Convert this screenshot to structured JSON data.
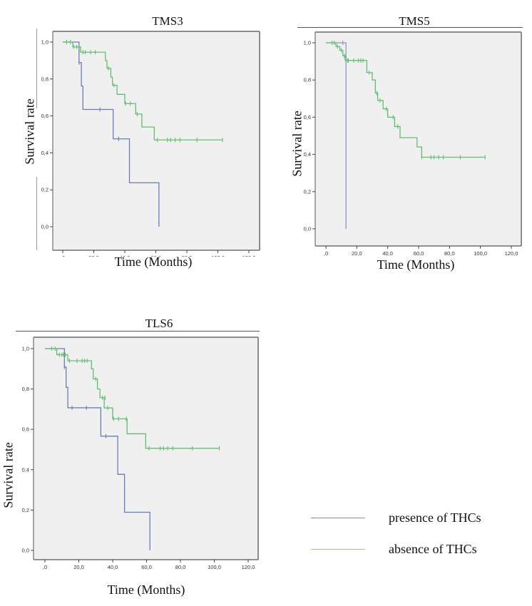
{
  "legend": {
    "items": [
      {
        "label": "presence of THCs",
        "color": "#7f86b8"
      },
      {
        "label": "absence of THCs",
        "color": "#8fcf9a"
      }
    ]
  },
  "chart_data": [
    {
      "id": "tms3",
      "type": "line",
      "subtype": "kaplan-meier-step",
      "title": "TMS3",
      "xlabel": "Time (Months)",
      "ylabel": "Survival rate",
      "xlim": [
        0,
        120
      ],
      "ylim": [
        0,
        1
      ],
      "xticks": [
        0,
        20,
        40,
        60,
        80,
        100,
        120
      ],
      "xtick_labels": [
        ",0",
        "20,0",
        "40,0",
        "60,0",
        "80,0",
        "100,0",
        "120,0"
      ],
      "yticks": [
        0,
        0.2,
        0.4,
        0.6,
        0.8,
        1.0
      ],
      "ytick_labels": [
        "0,0",
        "0,2",
        "0,4",
        "0,6",
        "0,8",
        "1,0"
      ],
      "grid": false,
      "series": [
        {
          "name": "presence of THCs",
          "color": "#6f7ab8",
          "steps": [
            [
              0,
              1.0
            ],
            [
              10.5,
              0.889
            ],
            [
              12,
              0.762
            ],
            [
              13,
              0.635
            ],
            [
              32.5,
              0.476
            ],
            [
              43,
              0.238
            ],
            [
              62,
              0.0
            ]
          ],
          "end": 62,
          "censors": [
            [
              10.5,
              0.889
            ],
            [
              24,
              0.635
            ],
            [
              36,
              0.476
            ]
          ]
        },
        {
          "name": "absence of THCs",
          "color": "#5fbf6f",
          "steps": [
            [
              0,
              1.0
            ],
            [
              6.5,
              0.974
            ],
            [
              11.5,
              0.945
            ],
            [
              27.5,
              0.9
            ],
            [
              28.5,
              0.858
            ],
            [
              31,
              0.81
            ],
            [
              32,
              0.766
            ],
            [
              35,
              0.717
            ],
            [
              40,
              0.667
            ],
            [
              47,
              0.61
            ],
            [
              51,
              0.54
            ],
            [
              59,
              0.47
            ]
          ],
          "end": 103,
          "censors": [
            [
              2.5,
              1.0
            ],
            [
              5,
              1.0
            ],
            [
              7,
              0.974
            ],
            [
              9,
              0.974
            ],
            [
              10.5,
              0.974
            ],
            [
              13,
              0.945
            ],
            [
              14.5,
              0.945
            ],
            [
              18,
              0.945
            ],
            [
              21,
              0.945
            ],
            [
              29.5,
              0.858
            ],
            [
              33,
              0.766
            ],
            [
              40.5,
              0.667
            ],
            [
              43.5,
              0.667
            ],
            [
              48,
              0.61
            ],
            [
              61,
              0.47
            ],
            [
              67.5,
              0.47
            ],
            [
              69.5,
              0.47
            ],
            [
              72.5,
              0.47
            ],
            [
              75.5,
              0.47
            ],
            [
              86.5,
              0.47
            ],
            [
              103,
              0.47
            ]
          ]
        }
      ]
    },
    {
      "id": "tms5",
      "type": "line",
      "subtype": "kaplan-meier-step",
      "title": "TMS5",
      "xlabel": "Time (Months)",
      "ylabel": "Survival rate",
      "xlim": [
        0,
        120
      ],
      "ylim": [
        0,
        1
      ],
      "xticks": [
        0,
        20,
        40,
        60,
        80,
        100,
        120
      ],
      "xtick_labels": [
        ",0",
        "20,0",
        "40,0",
        "60,0",
        "80,0",
        "100,0",
        "120,0"
      ],
      "yticks": [
        0,
        0.2,
        0.4,
        0.6,
        0.8,
        1.0
      ],
      "ytick_labels": [
        "0,0",
        "0,2",
        "0,4",
        "0,6",
        "0,8",
        "1,0"
      ],
      "grid": false,
      "series": [
        {
          "name": "presence of THCs",
          "color": "#8a95c8",
          "steps": [
            [
              0,
              1.0
            ],
            [
              13,
              0.0
            ]
          ],
          "end": 13,
          "censors": [
            [
              11,
              1.0
            ]
          ]
        },
        {
          "name": "absence of THCs",
          "color": "#5fbf6f",
          "steps": [
            [
              0,
              1.0
            ],
            [
              6.5,
              0.98
            ],
            [
              9,
              0.96
            ],
            [
              11,
              0.93
            ],
            [
              12.5,
              0.905
            ],
            [
              26.5,
              0.84
            ],
            [
              30,
              0.8
            ],
            [
              32,
              0.73
            ],
            [
              33.5,
              0.69
            ],
            [
              37,
              0.645
            ],
            [
              40,
              0.6
            ],
            [
              44.5,
              0.55
            ],
            [
              48,
              0.49
            ],
            [
              59,
              0.44
            ],
            [
              62,
              0.385
            ]
          ],
          "end": 103,
          "censors": [
            [
              4,
              1.0
            ],
            [
              5.5,
              1.0
            ],
            [
              7.5,
              0.98
            ],
            [
              10,
              0.96
            ],
            [
              12,
              0.93
            ],
            [
              14,
              0.905
            ],
            [
              14.5,
              0.905
            ],
            [
              18,
              0.905
            ],
            [
              21,
              0.905
            ],
            [
              22.5,
              0.905
            ],
            [
              24,
              0.905
            ],
            [
              28,
              0.84
            ],
            [
              33,
              0.73
            ],
            [
              35,
              0.69
            ],
            [
              39,
              0.645
            ],
            [
              43.5,
              0.6
            ],
            [
              46.5,
              0.55
            ],
            [
              62,
              0.385
            ],
            [
              68,
              0.385
            ],
            [
              70,
              0.385
            ],
            [
              73,
              0.385
            ],
            [
              76,
              0.385
            ],
            [
              87,
              0.385
            ],
            [
              103,
              0.385
            ]
          ]
        }
      ]
    },
    {
      "id": "tls6",
      "type": "line",
      "subtype": "kaplan-meier-step",
      "title": "TLS6",
      "xlabel": "Time (Months)",
      "ylabel": "Survival rate",
      "xlim": [
        0,
        120
      ],
      "ylim": [
        0,
        1
      ],
      "xticks": [
        0,
        20,
        40,
        60,
        80,
        100,
        120
      ],
      "xtick_labels": [
        ",0",
        "20,0",
        "40,0",
        "60,0",
        "80,0",
        "100,0",
        "120,0"
      ],
      "yticks": [
        0,
        0.2,
        0.4,
        0.6,
        0.8,
        1.0
      ],
      "ytick_labels": [
        "0,0",
        "0,2",
        "0,4",
        "0,6",
        "0,8",
        "1,0"
      ],
      "grid": false,
      "series": [
        {
          "name": "presence of THCs",
          "color": "#6f7ab8",
          "steps": [
            [
              0,
              1.0
            ],
            [
              11.5,
              0.909
            ],
            [
              12.5,
              0.808
            ],
            [
              13.5,
              0.707
            ],
            [
              33,
              0.566
            ],
            [
              43,
              0.377
            ],
            [
              47,
              0.189
            ],
            [
              62,
              0.0
            ]
          ],
          "end": 62,
          "censors": [
            [
              11.5,
              0.909
            ],
            [
              16,
              0.707
            ],
            [
              24.5,
              0.707
            ],
            [
              36,
              0.566
            ]
          ]
        },
        {
          "name": "absence of THCs",
          "color": "#5fbf6f",
          "steps": [
            [
              0,
              1.0
            ],
            [
              7,
              0.97
            ],
            [
              13.5,
              0.94
            ],
            [
              27.5,
              0.9
            ],
            [
              28.5,
              0.85
            ],
            [
              31,
              0.8
            ],
            [
              32.5,
              0.757
            ],
            [
              35,
              0.706
            ],
            [
              40,
              0.652
            ],
            [
              48.5,
              0.578
            ],
            [
              59.5,
              0.506
            ]
          ],
          "end": 103,
          "censors": [
            [
              4,
              1.0
            ],
            [
              6,
              1.0
            ],
            [
              8.5,
              0.97
            ],
            [
              10,
              0.97
            ],
            [
              11,
              0.97
            ],
            [
              12,
              0.97
            ],
            [
              14.5,
              0.94
            ],
            [
              19,
              0.94
            ],
            [
              22,
              0.94
            ],
            [
              23.5,
              0.94
            ],
            [
              25,
              0.94
            ],
            [
              30,
              0.85
            ],
            [
              34,
              0.757
            ],
            [
              35.5,
              0.757
            ],
            [
              37,
              0.706
            ],
            [
              40.5,
              0.652
            ],
            [
              43.5,
              0.652
            ],
            [
              48,
              0.652
            ],
            [
              61.5,
              0.506
            ],
            [
              68,
              0.506
            ],
            [
              70,
              0.506
            ],
            [
              72.5,
              0.506
            ],
            [
              75.5,
              0.506
            ],
            [
              87,
              0.506
            ],
            [
              103,
              0.506
            ]
          ]
        }
      ]
    }
  ]
}
